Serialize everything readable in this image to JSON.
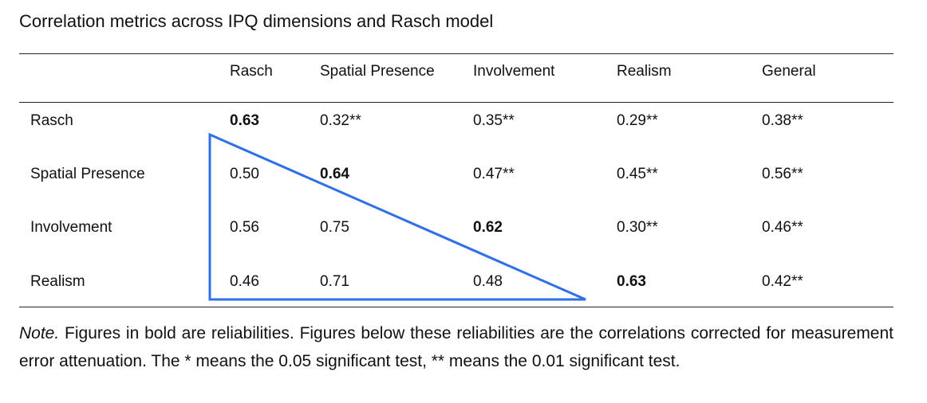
{
  "title": "Correlation metrics across IPQ dimensions and Rasch model",
  "columns": [
    "Rasch",
    "Spatial Presence",
    "Involvement",
    "Realism",
    "General"
  ],
  "rows": [
    {
      "label": "Rasch",
      "cells": [
        "0.63",
        "0.32**",
        "0.35**",
        "0.29**",
        "0.38**"
      ],
      "bold": 0
    },
    {
      "label": "Spatial Presence",
      "cells": [
        "0.50",
        "0.64",
        "0.47**",
        "0.45**",
        "0.56**"
      ],
      "bold": 1
    },
    {
      "label": "Involvement",
      "cells": [
        "0.56",
        "0.75",
        "0.62",
        "0.30**",
        "0.46**"
      ],
      "bold": 2
    },
    {
      "label": "Realism",
      "cells": [
        "0.46",
        "0.71",
        "0.48",
        "0.63",
        "0.42**"
      ],
      "bold": 3
    }
  ],
  "note": {
    "lead": "Note.",
    "text": " Figures in bold are reliabilities. Figures below these reliabilities are the correlations corrected for measurement error attenuation. The * means the 0.05 significant test, ** means the 0.01 significant test."
  },
  "colors": {
    "highlight_outline": "#2f6fe8"
  }
}
